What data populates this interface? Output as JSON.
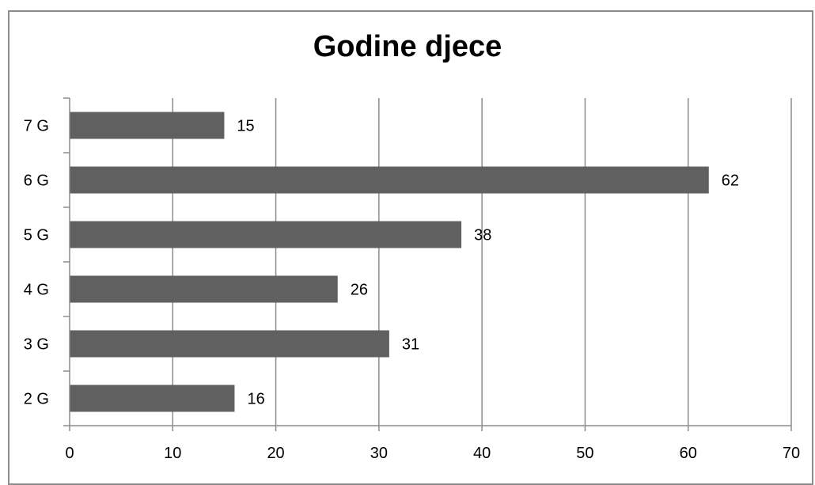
{
  "chart_data": {
    "type": "bar",
    "orientation": "horizontal",
    "title": "Godine djece",
    "xlabel": "",
    "ylabel": "",
    "categories": [
      "2 G",
      "3 G",
      "4 G",
      "5 G",
      "6 G",
      "7 G"
    ],
    "values": [
      16,
      31,
      26,
      38,
      62,
      15
    ],
    "xlim": [
      0,
      70
    ],
    "xticks": [
      "0",
      "10",
      "20",
      "30",
      "40",
      "50",
      "60",
      "70"
    ],
    "grid": true,
    "legend": "none",
    "bar_color": "#606060",
    "data_labels": true
  }
}
